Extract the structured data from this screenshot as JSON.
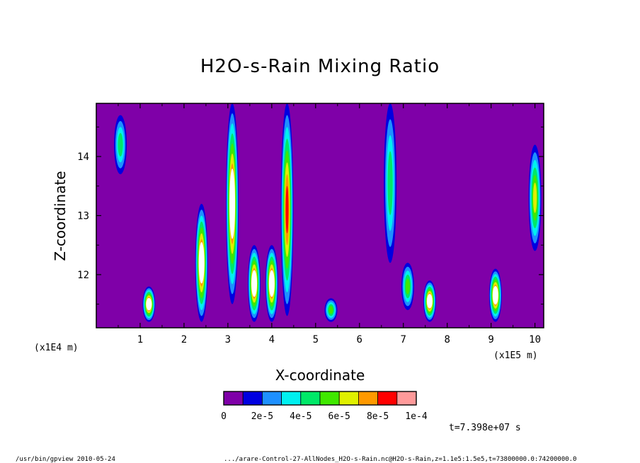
{
  "chart_data": {
    "type": "heatmap",
    "title": "H2O-s-Rain Mixing Ratio",
    "xlabel": "X-coordinate",
    "ylabel": "Z-coordinate",
    "x_scale_label": "(x1E5 m)",
    "y_scale_label": "(x1E4 m)",
    "x_ticks": [
      "1",
      "2",
      "3",
      "4",
      "5",
      "6",
      "7",
      "8",
      "9",
      "10"
    ],
    "y_ticks": [
      "12",
      "13",
      "14"
    ],
    "xlim": [
      0,
      10.2
    ],
    "ylim": [
      11.1,
      14.9
    ],
    "colorbar": {
      "colors": [
        "#7f00a8",
        "#0000e0",
        "#1e90ff",
        "#00f0f0",
        "#00e868",
        "#40e800",
        "#e0f000",
        "#ff9900",
        "#ff0000",
        "#ff9a9a"
      ],
      "labels": [
        "0",
        "2e-5",
        "4e-5",
        "6e-5",
        "8e-5",
        "1e-4"
      ],
      "min": 0,
      "max": 0.0001
    },
    "background_color": "#7f00a8",
    "time_label": "t=7.398e+07 s",
    "features": [
      {
        "x": 0.55,
        "z_bottom": 13.7,
        "z_top": 14.7,
        "peak": 4e-05
      },
      {
        "x": 1.2,
        "z_bottom": 11.2,
        "z_top": 11.8,
        "peak": 0.0001
      },
      {
        "x": 2.4,
        "z_bottom": 11.2,
        "z_top": 13.2,
        "peak": 0.0001
      },
      {
        "x": 3.1,
        "z_bottom": 11.5,
        "z_top": 14.9,
        "peak": 0.0001
      },
      {
        "x": 3.6,
        "z_bottom": 11.2,
        "z_top": 12.5,
        "peak": 0.0001
      },
      {
        "x": 4.0,
        "z_bottom": 11.2,
        "z_top": 12.5,
        "peak": 0.0001
      },
      {
        "x": 4.35,
        "z_bottom": 11.3,
        "z_top": 14.9,
        "peak": 9e-05
      },
      {
        "x": 5.35,
        "z_bottom": 11.2,
        "z_top": 11.6,
        "peak": 5e-05
      },
      {
        "x": 6.7,
        "z_bottom": 12.2,
        "z_top": 14.9,
        "peak": 4e-05
      },
      {
        "x": 7.1,
        "z_bottom": 11.4,
        "z_top": 12.2,
        "peak": 6e-05
      },
      {
        "x": 7.6,
        "z_bottom": 11.2,
        "z_top": 11.9,
        "peak": 0.0001
      },
      {
        "x": 9.1,
        "z_bottom": 11.2,
        "z_top": 12.1,
        "peak": 0.0001
      },
      {
        "x": 10.0,
        "z_bottom": 12.4,
        "z_top": 14.2,
        "peak": 7e-05
      }
    ]
  },
  "footer": {
    "program": "/usr/bin/gpview   2010-05-24",
    "source": ".../arare-Control-27-AllNodes_H2O-s-Rain.nc@H2O-s-Rain,z=1.1e5:1.5e5,t=73800000.0:74200000.0"
  }
}
